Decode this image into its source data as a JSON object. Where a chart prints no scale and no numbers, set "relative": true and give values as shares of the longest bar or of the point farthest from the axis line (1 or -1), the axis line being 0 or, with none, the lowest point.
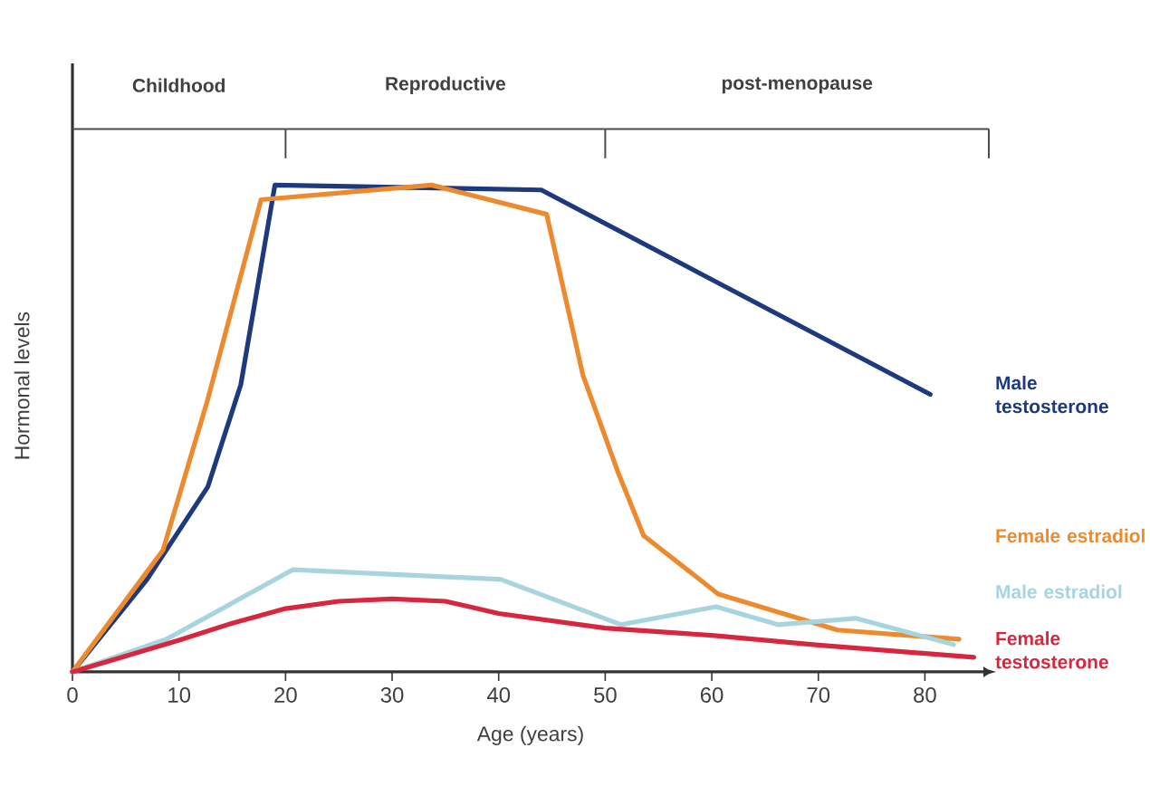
{
  "chart_data": {
    "type": "line",
    "relative": true,
    "xlabel": "Age (years)",
    "ylabel": "Hormonal levels",
    "xlim": [
      0,
      86
    ],
    "xticks": [
      0,
      10,
      20,
      30,
      40,
      50,
      60,
      70,
      80
    ],
    "grid": false,
    "legend": false,
    "marker": "none",
    "line_style": "solid",
    "annotations": [
      "Childhood",
      "Reproductive",
      "post-menopause"
    ],
    "series": [
      {
        "name": "Male testosterone",
        "color": "#1d3a7e",
        "x": [
          0,
          7,
          12.7,
          15.8,
          19,
          44,
          80.5
        ],
        "values": [
          0,
          0.19,
          0.38,
          0.59,
          1,
          0.99,
          0.57
        ]
      },
      {
        "name": "Female estradiol",
        "color": "#ee8a2e",
        "x": [
          0,
          8.5,
          12.7,
          17.7,
          33.7,
          44.5,
          47.9,
          51.2,
          53.6,
          60.6,
          71.8,
          83.2
        ],
        "values": [
          0,
          0.25,
          0.56,
          0.97,
          1,
          0.94,
          0.61,
          0.41,
          0.28,
          0.16,
          0.086,
          0.067
        ]
      },
      {
        "name": "Male estradiol",
        "color": "#a8d4e0",
        "x": [
          0,
          8.8,
          20.7,
          40.2,
          51.5,
          60.4,
          66.2,
          73.5,
          82.7
        ],
        "values": [
          0,
          0.067,
          0.21,
          0.19,
          0.097,
          0.134,
          0.097,
          0.11,
          0.056
        ]
      },
      {
        "name": "Female testosterone",
        "color": "#d7263d",
        "x": [
          0,
          10,
          15,
          20,
          25,
          30,
          35,
          40,
          50,
          60,
          70,
          84.6
        ],
        "values": [
          0,
          0.065,
          0.1,
          0.13,
          0.145,
          0.15,
          0.145,
          0.12,
          0.09,
          0.075,
          0.055,
          0.03
        ]
      }
    ]
  }
}
